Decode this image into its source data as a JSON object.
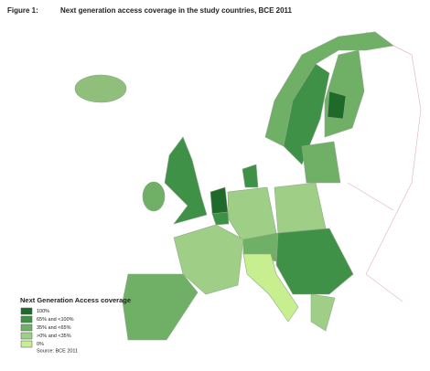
{
  "header": {
    "figure_label": "Figure 1:",
    "title": "Next generation access coverage in the study countries, BCE 2011"
  },
  "legend": {
    "title": "Next Generation Access coverage",
    "items": [
      {
        "label": "100%",
        "color": "#1f6a2a"
      },
      {
        "label": "65% and <100%",
        "color": "#3f9148"
      },
      {
        "label": "35% and <65%",
        "color": "#6fb066"
      },
      {
        "label": ">0% and <35%",
        "color": "#9fcf86"
      },
      {
        "label": "0%",
        "color": "#c8ef8f"
      }
    ]
  },
  "source": "Source: BCE 2011"
}
